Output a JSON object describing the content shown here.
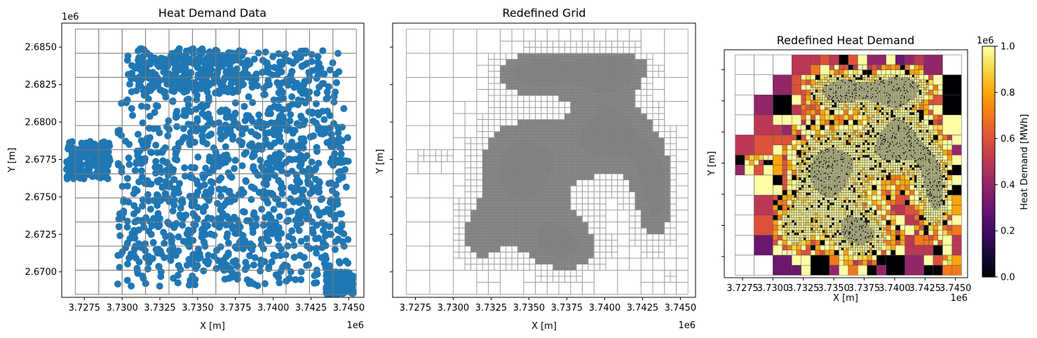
{
  "chart_data": [
    {
      "type": "scatter",
      "title": "Heat Demand Data",
      "xlabel": "X [m]",
      "ylabel": "Y [m]",
      "xlim": [
        3726000,
        3746000
      ],
      "ylim": [
        2668300,
        2686600
      ],
      "x_offset_label": "1e6",
      "y_offset_label": "1e6",
      "x_ticks": [
        3727500,
        3730000,
        3732500,
        3735000,
        3737500,
        3740000,
        3742500,
        3745000
      ],
      "x_tick_labels": [
        "3.7275",
        "3.7300",
        "3.7325",
        "3.7350",
        "3.7375",
        "3.7400",
        "3.7425",
        "3.7450"
      ],
      "y_ticks": [
        2670000,
        2672500,
        2675000,
        2677500,
        2680000,
        2682500,
        2685000
      ],
      "y_tick_labels": [
        "2.6700",
        "2.6725",
        "2.6750",
        "2.6775",
        "2.6800",
        "2.6825",
        "2.6850"
      ],
      "marker_color": "#1f77b4",
      "grid_overlay_color": "#555555",
      "point_regions": [
        {
          "x_range": [
            3729700,
            3745000
          ],
          "y_range": [
            2669000,
            2684800
          ]
        },
        {
          "x_range": [
            3726300,
            3729200
          ],
          "y_range": [
            2676200,
            2678700
          ]
        },
        {
          "x_range": [
            3731000,
            3738000
          ],
          "y_range": [
            2682000,
            2684900
          ]
        },
        {
          "x_range": [
            3743500,
            3745300
          ],
          "y_range": [
            2668500,
            2670000
          ]
        }
      ]
    },
    {
      "type": "heatmap",
      "title": "Redefined Grid",
      "xlabel": "X [m]",
      "ylabel": "Y [m]",
      "xlim": [
        3726000,
        3746000
      ],
      "ylim": [
        2668300,
        2686600
      ],
      "x_offset_label": "1e6",
      "x_ticks": [
        3727500,
        3730000,
        3732500,
        3735000,
        3737500,
        3740000,
        3742500,
        3745000
      ],
      "x_tick_labels": [
        "3.7275",
        "3.7300",
        "3.7325",
        "3.7350",
        "3.7375",
        "3.7400",
        "3.7425",
        "3.7450"
      ],
      "y_ticks": [
        2670000,
        2672500,
        2675000,
        2677500,
        2680000,
        2682500,
        2685000
      ],
      "y_tick_labels": [
        "",
        "",
        "",
        "",
        "",
        "",
        ""
      ],
      "cell_color": "#888888"
    },
    {
      "type": "heatmap",
      "title": "Redefined Heat Demand",
      "xlabel": "X [m]",
      "ylabel": "Y [m]",
      "xlim": [
        3726000,
        3746000
      ],
      "ylim": [
        2668300,
        2686600
      ],
      "x_offset_label": "1e6",
      "x_ticks": [
        3727500,
        3730000,
        3732500,
        3735000,
        3737500,
        3740000,
        3742500,
        3745000
      ],
      "x_tick_labels": [
        "3.7275",
        "3.7300",
        "3.7325",
        "3.7350",
        "3.7375",
        "3.7400",
        "3.7425",
        "3.7450"
      ],
      "y_ticks": [
        2670000,
        2672500,
        2675000,
        2677500,
        2680000,
        2682500,
        2685000
      ],
      "y_tick_labels": [
        "",
        "",
        "",
        "",
        "",
        "",
        ""
      ],
      "colormap": "inferno",
      "colorbar": {
        "label": "Heat Demand [MWh]",
        "range": [
          0,
          1000000
        ],
        "offset_label": "1e6",
        "ticks": [
          0,
          200000,
          400000,
          600000,
          800000,
          1000000
        ],
        "tick_labels": [
          "0.0",
          "0.2",
          "0.4",
          "0.6",
          "0.8",
          "1.0"
        ]
      }
    }
  ]
}
